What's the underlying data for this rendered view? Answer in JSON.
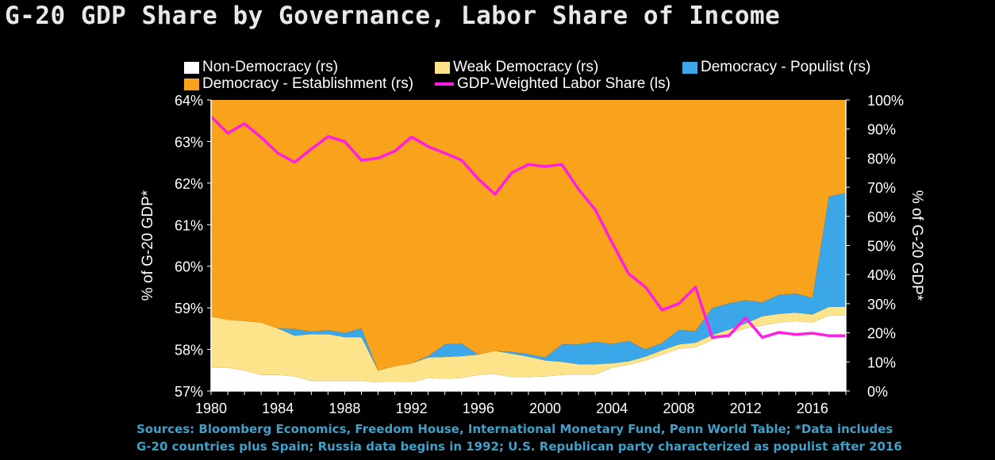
{
  "title": "G-20 GDP Share by Governance, Labor Share of Income",
  "sources": [
    "Sources: Bloomberg Economics, Freedom House, International Monetary Fund, Penn World Table; *Data includes",
    "G-20 countries plus Spain; Russia data begins in 1992; U.S. Republican party characterized as populist after 2016"
  ],
  "colors": {
    "non_democracy": "#ffffff",
    "weak_democracy": "#fde38a",
    "democracy_populist": "#3ba6e8",
    "democracy_establishment": "#f9a21b",
    "labor_share": "#ff1fe0",
    "background": "#000000",
    "sources_text": "#3fa0c8"
  },
  "chart_data": {
    "type": "area",
    "stacked": true,
    "x": [
      1980,
      1981,
      1982,
      1983,
      1984,
      1985,
      1986,
      1987,
      1988,
      1989,
      1990,
      1991,
      1992,
      1993,
      1994,
      1995,
      1996,
      1997,
      1998,
      1999,
      2000,
      2001,
      2002,
      2003,
      2004,
      2005,
      2006,
      2007,
      2008,
      2009,
      2010,
      2011,
      2012,
      2013,
      2014,
      2015,
      2016,
      2017,
      2018
    ],
    "xticks": [
      "1980",
      "1984",
      "1988",
      "1992",
      "1996",
      "2000",
      "2004",
      "2008",
      "2012",
      "2016"
    ],
    "xlim": [
      1980,
      2018
    ],
    "left_axis": {
      "label": "% of G-20 GDP*",
      "ylim": [
        57,
        64
      ],
      "ticks": [
        "57%",
        "58%",
        "59%",
        "60%",
        "61%",
        "62%",
        "63%",
        "64%"
      ]
    },
    "right_axis": {
      "label": "% of G-20 GDP*",
      "ylim": [
        0,
        100
      ],
      "ticks": [
        "0%",
        "10%",
        "20%",
        "30%",
        "40%",
        "50%",
        "60%",
        "70%",
        "80%",
        "90%",
        "100%"
      ]
    },
    "legend": {
      "non_democracy": "Non-Democracy (rs)",
      "weak_democracy": "Weak Democracy (rs)",
      "democracy_populist": "Democracy - Populist (rs)",
      "democracy_establishment": "Democracy - Establishment (rs)",
      "labor_share": "GDP-Weighted Labor Share (ls)"
    },
    "stacked_series": [
      {
        "key": "non_democracy",
        "axis": "right",
        "values": [
          8,
          8,
          7,
          5.5,
          5.5,
          5,
          3.5,
          3.5,
          3.5,
          3.5,
          3,
          3,
          3,
          4.5,
          4.2,
          4.5,
          5.5,
          5.8,
          4.8,
          4.8,
          5,
          5.5,
          5.7,
          5.6,
          8,
          9,
          10.5,
          12.5,
          14.5,
          15,
          17.5,
          19.5,
          21.5,
          22.5,
          23.5,
          24,
          23.5,
          26,
          26
        ]
      },
      {
        "key": "weak_democracy",
        "axis": "right",
        "values": [
          17.5,
          16.5,
          17,
          18,
          16,
          14,
          16,
          16,
          15,
          15,
          4,
          5.5,
          6.5,
          7,
          7.5,
          7.5,
          7,
          8,
          8,
          7,
          5.5,
          4.5,
          3.5,
          3.6,
          1.5,
          1.2,
          1.3,
          1.5,
          1.5,
          1.6,
          1.7,
          1.6,
          1.7,
          3.2,
          3,
          2.9,
          2.8,
          2.9,
          3
        ]
      },
      {
        "key": "democracy_populist",
        "axis": "right",
        "values": [
          0,
          0,
          0,
          0,
          0,
          2.3,
          0.9,
          1.4,
          1.5,
          3,
          0,
          0,
          0,
          0.5,
          4.3,
          4.3,
          0,
          0,
          0.6,
          0.9,
          1,
          6,
          6.8,
          7.7,
          6.7,
          7,
          2.5,
          2.5,
          5,
          4,
          9.3,
          9,
          8,
          4.8,
          6.5,
          6.6,
          5.7,
          38,
          39
        ]
      },
      {
        "key": "democracy_establishment",
        "axis": "right",
        "fill_to_top": true,
        "values": [
          74.5,
          75.5,
          76,
          76.5,
          78.5,
          78.7,
          79.6,
          79.1,
          80,
          78.5,
          93,
          91.5,
          90.5,
          88,
          84,
          83.7,
          87.5,
          86.2,
          86.6,
          87.3,
          88.5,
          84,
          84,
          83.1,
          83.8,
          82.8,
          85.7,
          83.5,
          79,
          79.4,
          71.5,
          69.9,
          68.8,
          69.5,
          67,
          66.5,
          68,
          33.1,
          32
        ]
      }
    ],
    "line_series": {
      "key": "labor_share",
      "axis": "left",
      "values": [
        63.6,
        63.2,
        63.43,
        63.1,
        62.72,
        62.5,
        62.82,
        63.12,
        63.0,
        62.55,
        62.6,
        62.77,
        63.11,
        62.88,
        62.72,
        62.55,
        62.1,
        61.73,
        62.25,
        62.45,
        62.4,
        62.45,
        61.85,
        61.36,
        60.57,
        59.82,
        59.5,
        58.95,
        59.1,
        59.5,
        58.29,
        58.33,
        58.76,
        58.29,
        58.41,
        58.36,
        58.39,
        58.33,
        58.33
      ]
    }
  }
}
